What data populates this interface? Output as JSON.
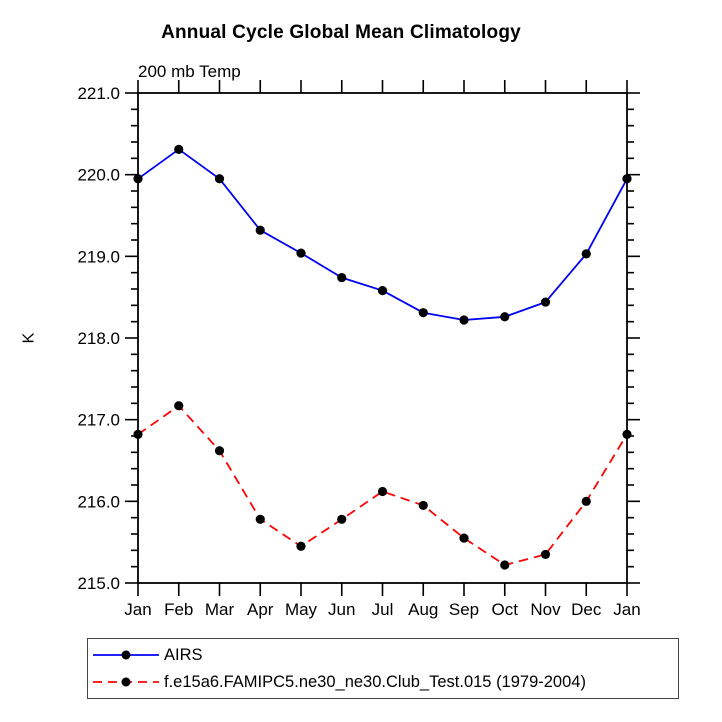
{
  "page": {
    "background_color": "#ffffff"
  },
  "chart_data": {
    "type": "line",
    "title": "Annual Cycle Global Mean Climatology",
    "left_axis_title": "200 mb Temp",
    "ylabel": "K",
    "xlabel": "",
    "x_categories": [
      "Jan",
      "Feb",
      "Mar",
      "Apr",
      "May",
      "Jun",
      "Jul",
      "Aug",
      "Sep",
      "Oct",
      "Nov",
      "Dec",
      "Jan"
    ],
    "ylim": [
      215.0,
      221.0
    ],
    "ytick_major_interval": 1.0,
    "ytick_minor_interval": 0.2,
    "ytick_labels": [
      "215.0",
      "216.0",
      "217.0",
      "218.0",
      "219.0",
      "220.0",
      "221.0"
    ],
    "grid": false,
    "axis_color": "#000000",
    "legend_position": "bottom-left-box",
    "series": [
      {
        "name": "AIRS",
        "line_color": "#0202f2",
        "line_style": "solid",
        "marker": "filled-circle",
        "marker_color": "#000000",
        "values": [
          219.95,
          220.31,
          219.95,
          219.32,
          219.04,
          218.74,
          218.58,
          218.31,
          218.22,
          218.26,
          218.44,
          219.03,
          219.95
        ]
      },
      {
        "name": "f.e15a6.FAMIPC5.ne30_ne30.Club_Test.015 (1979-2004)",
        "line_color": "#fb0505",
        "line_style": "dashed",
        "marker": "filled-circle",
        "marker_color": "#000000",
        "values": [
          216.82,
          217.17,
          216.62,
          215.78,
          215.45,
          215.78,
          216.12,
          215.95,
          215.55,
          215.22,
          215.35,
          216.0,
          216.82
        ]
      }
    ]
  }
}
